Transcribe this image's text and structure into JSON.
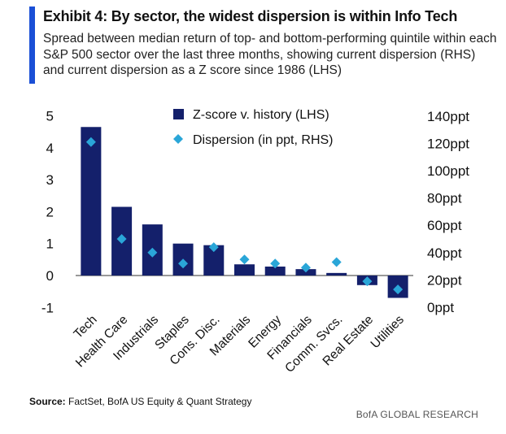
{
  "header": {
    "title": "Exhibit 4: By sector, the widest dispersion is within Info Tech",
    "subtitle": "Spread between median return of top- and bottom-performing quintile within each S&P 500 sector over the last three months, showing current dispersion (RHS) and current dispersion as a Z score since 1986 (LHS)"
  },
  "footer": {
    "source_label": "Source:",
    "source_text": "FactSet, BofA US Equity & Quant Strategy",
    "brand": "BofA GLOBAL RESEARCH"
  },
  "colors": {
    "accent": "#1a4fd6",
    "bar": "#14206b",
    "marker": "#2aa6d8"
  },
  "chart_data": {
    "type": "bar",
    "categories": [
      "Tech",
      "Health Care",
      "Industrials",
      "Staples",
      "Cons. Disc.",
      "Materials",
      "Energy",
      "Financials",
      "Comm. Svcs.",
      "Real Estate",
      "Utilities"
    ],
    "series": [
      {
        "name": "Z-score v. history (LHS)",
        "type": "bar",
        "axis": "left",
        "values": [
          4.65,
          2.15,
          1.6,
          1.0,
          0.95,
          0.35,
          0.28,
          0.2,
          0.08,
          -0.3,
          -0.7
        ]
      },
      {
        "name": "Dispersion (in ppt, RHS)",
        "type": "scatter",
        "marker": "diamond",
        "axis": "right",
        "values": [
          121,
          50,
          40,
          32,
          44,
          35,
          32,
          29,
          33,
          19,
          13
        ]
      }
    ],
    "yleft": {
      "lim": [
        -1,
        5
      ],
      "ticks": [
        "5",
        "4",
        "3",
        "2",
        "1",
        "0",
        "-1"
      ],
      "tick_values": [
        5,
        4,
        3,
        2,
        1,
        0,
        -1
      ]
    },
    "yright": {
      "lim": [
        0,
        140
      ],
      "ticks": [
        "140ppt",
        "120ppt",
        "100ppt",
        "80ppt",
        "60ppt",
        "40ppt",
        "20ppt",
        "0ppt"
      ],
      "tick_values": [
        140,
        120,
        100,
        80,
        60,
        40,
        20,
        0
      ]
    },
    "legend_position": "top-center",
    "grid": false
  }
}
